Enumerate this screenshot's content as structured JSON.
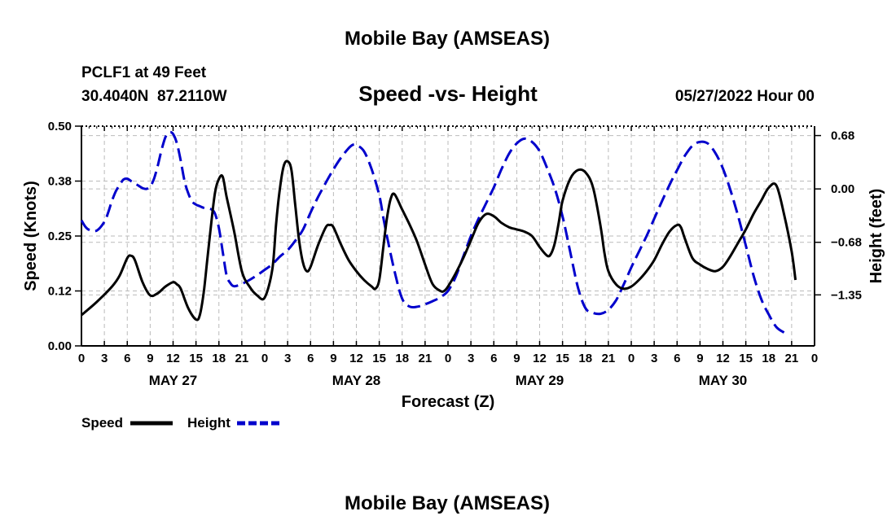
{
  "header": {
    "title": "Mobile Bay (AMSEAS)",
    "station": "PCLF1 at 49 Feet",
    "coords": "30.4040N  87.2110W",
    "subtitle": "Speed -vs- Height",
    "datetime": "05/27/2022 Hour 00",
    "footer_title": "Mobile Bay (AMSEAS)"
  },
  "chart_data": {
    "type": "line",
    "title": "Speed -vs- Height",
    "xlabel": "Forecast (Z)",
    "ylabel_left": "Speed (Knots)",
    "ylabel_right": "Height (feet)",
    "xlim": [
      0,
      96
    ],
    "ylim_left": [
      0,
      0.5
    ],
    "ylim_right": [
      -2.0,
      0.8
    ],
    "xtick_labels": [
      "0",
      "3",
      "6",
      "9",
      "12",
      "15",
      "18",
      "21",
      "0",
      "3",
      "6",
      "9",
      "12",
      "15",
      "18",
      "21",
      "0",
      "3",
      "6",
      "9",
      "12",
      "15",
      "18",
      "21",
      "0",
      "3",
      "6",
      "9",
      "12",
      "15",
      "18",
      "21",
      "0"
    ],
    "left_ticks": [
      {
        "value": 0.0,
        "label": "0.00"
      },
      {
        "value": 0.125,
        "label": "0.12"
      },
      {
        "value": 0.25,
        "label": "0.25"
      },
      {
        "value": 0.375,
        "label": "0.38"
      },
      {
        "value": 0.5,
        "label": "0.50"
      }
    ],
    "right_ticks": [
      {
        "value": 0.68,
        "label": "0.68"
      },
      {
        "value": 0.0,
        "label": "0.00"
      },
      {
        "value": -0.68,
        "label": "−0.68"
      },
      {
        "value": -1.35,
        "label": "−1.35"
      }
    ],
    "day_labels": [
      {
        "hour": 12,
        "label": "MAY 27"
      },
      {
        "hour": 36,
        "label": "MAY 28"
      },
      {
        "hour": 60,
        "label": "MAY 29"
      },
      {
        "hour": 84,
        "label": "MAY 30"
      }
    ],
    "legend": [
      {
        "name": "Speed",
        "color": "#000000",
        "dash": false
      },
      {
        "name": "Height",
        "color": "#0000cc",
        "dash": true
      }
    ],
    "series": [
      {
        "name": "Speed",
        "axis": "left",
        "color": "#000000",
        "points": [
          [
            0,
            0.07
          ],
          [
            2,
            0.1
          ],
          [
            4,
            0.135
          ],
          [
            5,
            0.16
          ],
          [
            6,
            0.2
          ],
          [
            6.5,
            0.205
          ],
          [
            7,
            0.195
          ],
          [
            8,
            0.145
          ],
          [
            9,
            0.115
          ],
          [
            10,
            0.12
          ],
          [
            11,
            0.135
          ],
          [
            12,
            0.145
          ],
          [
            12.5,
            0.14
          ],
          [
            13,
            0.13
          ],
          [
            14,
            0.085
          ],
          [
            15,
            0.06
          ],
          [
            15.5,
            0.07
          ],
          [
            16,
            0.12
          ],
          [
            16.5,
            0.2
          ],
          [
            17,
            0.28
          ],
          [
            17.5,
            0.35
          ],
          [
            18,
            0.38
          ],
          [
            18.5,
            0.385
          ],
          [
            19,
            0.34
          ],
          [
            20,
            0.26
          ],
          [
            21,
            0.17
          ],
          [
            22,
            0.135
          ],
          [
            23,
            0.115
          ],
          [
            24,
            0.11
          ],
          [
            25,
            0.175
          ],
          [
            25.5,
            0.28
          ],
          [
            26,
            0.36
          ],
          [
            26.5,
            0.41
          ],
          [
            27,
            0.42
          ],
          [
            27.5,
            0.4
          ],
          [
            28,
            0.32
          ],
          [
            28.5,
            0.24
          ],
          [
            29,
            0.19
          ],
          [
            29.5,
            0.17
          ],
          [
            30,
            0.18
          ],
          [
            31,
            0.23
          ],
          [
            32,
            0.27
          ],
          [
            32.5,
            0.275
          ],
          [
            33,
            0.27
          ],
          [
            34,
            0.23
          ],
          [
            35,
            0.195
          ],
          [
            36,
            0.17
          ],
          [
            37,
            0.15
          ],
          [
            38,
            0.135
          ],
          [
            38.5,
            0.13
          ],
          [
            39,
            0.15
          ],
          [
            39.5,
            0.22
          ],
          [
            40,
            0.29
          ],
          [
            40.5,
            0.335
          ],
          [
            41,
            0.345
          ],
          [
            42,
            0.31
          ],
          [
            43,
            0.275
          ],
          [
            44,
            0.235
          ],
          [
            45,
            0.185
          ],
          [
            46,
            0.14
          ],
          [
            47,
            0.125
          ],
          [
            47.5,
            0.125
          ],
          [
            48,
            0.135
          ],
          [
            49,
            0.165
          ],
          [
            50,
            0.2
          ],
          [
            51,
            0.24
          ],
          [
            52,
            0.28
          ],
          [
            53,
            0.3
          ],
          [
            54,
            0.295
          ],
          [
            55,
            0.28
          ],
          [
            56,
            0.27
          ],
          [
            57,
            0.265
          ],
          [
            58,
            0.26
          ],
          [
            59,
            0.25
          ],
          [
            60,
            0.225
          ],
          [
            61,
            0.205
          ],
          [
            61.5,
            0.21
          ],
          [
            62,
            0.235
          ],
          [
            62.5,
            0.28
          ],
          [
            63,
            0.33
          ],
          [
            64,
            0.38
          ],
          [
            65,
            0.4
          ],
          [
            66,
            0.395
          ],
          [
            67,
            0.36
          ],
          [
            68,
            0.27
          ],
          [
            68.5,
            0.21
          ],
          [
            69,
            0.17
          ],
          [
            70,
            0.14
          ],
          [
            71,
            0.13
          ],
          [
            72,
            0.135
          ],
          [
            73,
            0.15
          ],
          [
            74,
            0.17
          ],
          [
            75,
            0.195
          ],
          [
            76,
            0.23
          ],
          [
            77,
            0.26
          ],
          [
            78,
            0.275
          ],
          [
            78.5,
            0.27
          ],
          [
            79,
            0.245
          ],
          [
            80,
            0.2
          ],
          [
            81,
            0.185
          ],
          [
            82,
            0.175
          ],
          [
            83,
            0.17
          ],
          [
            84,
            0.18
          ],
          [
            85,
            0.205
          ],
          [
            86,
            0.235
          ],
          [
            87,
            0.265
          ],
          [
            88,
            0.3
          ],
          [
            89,
            0.33
          ],
          [
            90,
            0.36
          ],
          [
            91,
            0.365
          ],
          [
            92,
            0.3
          ],
          [
            93,
            0.215
          ],
          [
            93.5,
            0.15
          ]
        ]
      },
      {
        "name": "Height",
        "axis": "right",
        "color": "#0000cc",
        "points": [
          [
            0,
            -0.4
          ],
          [
            0.5,
            -0.48
          ],
          [
            1,
            -0.52
          ],
          [
            2,
            -0.53
          ],
          [
            3,
            -0.42
          ],
          [
            3.5,
            -0.3
          ],
          [
            4,
            -0.15
          ],
          [
            4.5,
            -0.03
          ],
          [
            5,
            0.05
          ],
          [
            5.5,
            0.12
          ],
          [
            6,
            0.13
          ],
          [
            6.5,
            0.1
          ],
          [
            7,
            0.07
          ],
          [
            7.5,
            0.04
          ],
          [
            8,
            0.01
          ],
          [
            8.5,
            0.0
          ],
          [
            9,
            0.03
          ],
          [
            9.5,
            0.13
          ],
          [
            10,
            0.3
          ],
          [
            10.5,
            0.5
          ],
          [
            11,
            0.66
          ],
          [
            11.5,
            0.72
          ],
          [
            12,
            0.7
          ],
          [
            12.5,
            0.58
          ],
          [
            13,
            0.36
          ],
          [
            13.5,
            0.1
          ],
          [
            14,
            -0.06
          ],
          [
            14.5,
            -0.16
          ],
          [
            15,
            -0.2
          ],
          [
            15.5,
            -0.22
          ],
          [
            16,
            -0.24
          ],
          [
            17,
            -0.26
          ],
          [
            17.5,
            -0.32
          ],
          [
            18,
            -0.5
          ],
          [
            18.5,
            -0.8
          ],
          [
            19,
            -1.1
          ],
          [
            19.5,
            -1.2
          ],
          [
            20,
            -1.24
          ],
          [
            21,
            -1.21
          ],
          [
            22,
            -1.16
          ],
          [
            23,
            -1.1
          ],
          [
            24,
            -1.03
          ],
          [
            25,
            -0.96
          ],
          [
            26,
            -0.86
          ],
          [
            27,
            -0.78
          ],
          [
            28,
            -0.66
          ],
          [
            29,
            -0.52
          ],
          [
            30,
            -0.3
          ],
          [
            31,
            -0.1
          ],
          [
            32,
            0.08
          ],
          [
            33,
            0.25
          ],
          [
            34,
            0.4
          ],
          [
            35,
            0.52
          ],
          [
            35.5,
            0.56
          ],
          [
            36,
            0.56
          ],
          [
            37,
            0.48
          ],
          [
            38,
            0.25
          ],
          [
            39,
            -0.08
          ],
          [
            39.5,
            -0.35
          ],
          [
            40,
            -0.6
          ],
          [
            41,
            -1.05
          ],
          [
            42,
            -1.4
          ],
          [
            43,
            -1.5
          ],
          [
            44,
            -1.5
          ],
          [
            45,
            -1.47
          ],
          [
            46,
            -1.43
          ],
          [
            47,
            -1.38
          ],
          [
            48,
            -1.3
          ],
          [
            49,
            -1.12
          ],
          [
            50,
            -0.86
          ],
          [
            51,
            -0.6
          ],
          [
            52,
            -0.38
          ],
          [
            53,
            -0.18
          ],
          [
            54,
            0.02
          ],
          [
            55,
            0.25
          ],
          [
            56,
            0.45
          ],
          [
            57,
            0.58
          ],
          [
            58,
            0.64
          ],
          [
            59,
            0.6
          ],
          [
            60,
            0.48
          ],
          [
            61,
            0.26
          ],
          [
            62,
            0.0
          ],
          [
            63,
            -0.35
          ],
          [
            64,
            -0.8
          ],
          [
            65,
            -1.25
          ],
          [
            66,
            -1.52
          ],
          [
            67,
            -1.58
          ],
          [
            68,
            -1.59
          ],
          [
            69,
            -1.54
          ],
          [
            70,
            -1.42
          ],
          [
            71,
            -1.22
          ],
          [
            72,
            -1.0
          ],
          [
            73,
            -0.8
          ],
          [
            74,
            -0.6
          ],
          [
            75,
            -0.38
          ],
          [
            76,
            -0.16
          ],
          [
            77,
            0.05
          ],
          [
            78,
            0.24
          ],
          [
            79,
            0.42
          ],
          [
            80,
            0.55
          ],
          [
            81,
            0.6
          ],
          [
            82,
            0.58
          ],
          [
            83,
            0.46
          ],
          [
            84,
            0.26
          ],
          [
            85,
            -0.02
          ],
          [
            86,
            -0.35
          ],
          [
            87,
            -0.72
          ],
          [
            88,
            -1.1
          ],
          [
            89,
            -1.4
          ],
          [
            90,
            -1.6
          ],
          [
            91,
            -1.76
          ],
          [
            92,
            -1.83
          ]
        ]
      }
    ]
  }
}
